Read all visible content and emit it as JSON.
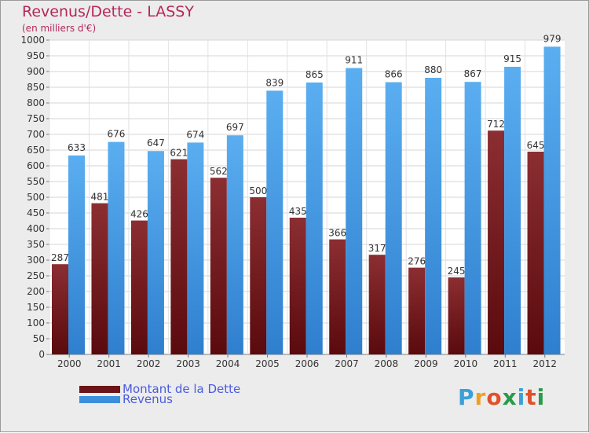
{
  "header": {
    "title": "Revenus/Dette - LASSY",
    "subtitle": "(en milliers d'€)"
  },
  "legend": {
    "items": [
      {
        "label": "Montant de la Dette",
        "color": "#6b1418"
      },
      {
        "label": "Revenus",
        "color": "#3d8fdb"
      }
    ]
  },
  "logo": {
    "text": "Proxiti",
    "letter_colors": [
      "#3aa0d8",
      "#f0a020",
      "#e0502a",
      "#2a9a4a",
      "#3aa0d8",
      "#e0502a",
      "#2a9a4a"
    ]
  },
  "chart_data": {
    "type": "bar",
    "categories": [
      "2000",
      "2001",
      "2002",
      "2003",
      "2004",
      "2005",
      "2006",
      "2007",
      "2008",
      "2009",
      "2010",
      "2011",
      "2012"
    ],
    "series": [
      {
        "name": "Montant de la Dette",
        "values": [
          287,
          481,
          426,
          621,
          562,
          500,
          435,
          366,
          317,
          276,
          245,
          712,
          645
        ],
        "color_top": "#8b2e32",
        "color_bottom": "#5a0a0d"
      },
      {
        "name": "Revenus",
        "values": [
          633,
          676,
          647,
          674,
          697,
          839,
          865,
          911,
          866,
          880,
          867,
          915,
          979
        ],
        "color_top": "#5aaef0",
        "color_bottom": "#2f7fcf"
      }
    ],
    "ylim": [
      0,
      1000
    ],
    "ytick_step": 50,
    "grid": true,
    "legend_position": "bottom-left"
  }
}
